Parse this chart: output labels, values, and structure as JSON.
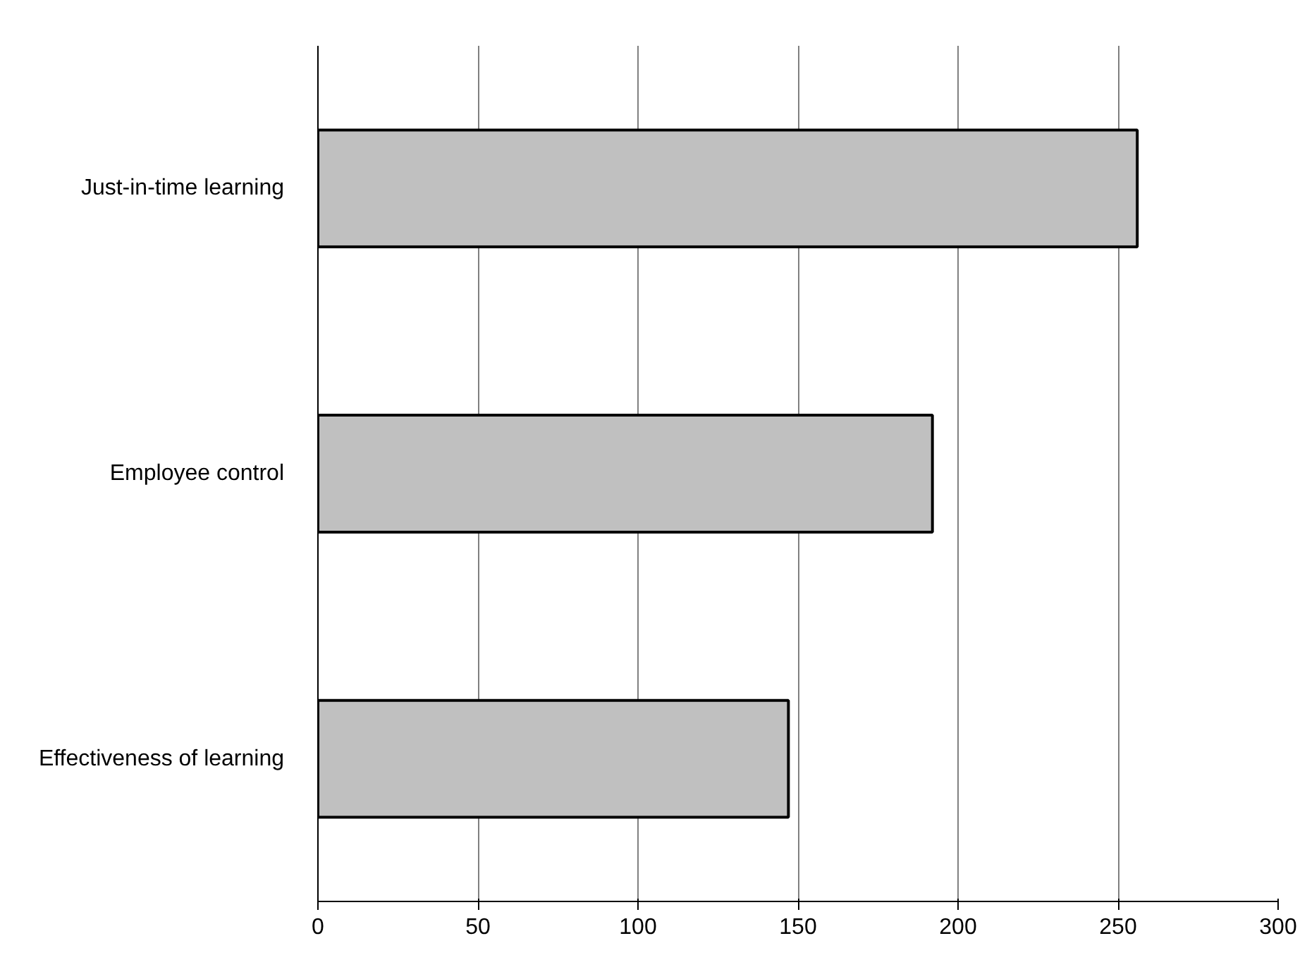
{
  "chart_data": {
    "type": "bar",
    "orientation": "horizontal",
    "categories": [
      "Just-in-time learning",
      "Employee control",
      "Effectiveness of learning"
    ],
    "values": [
      256,
      192,
      147
    ],
    "color": "#c0c0c0",
    "xlim": [
      0,
      300
    ],
    "xticks": [
      0,
      50,
      100,
      150,
      200,
      250,
      300
    ],
    "grid": "x"
  }
}
